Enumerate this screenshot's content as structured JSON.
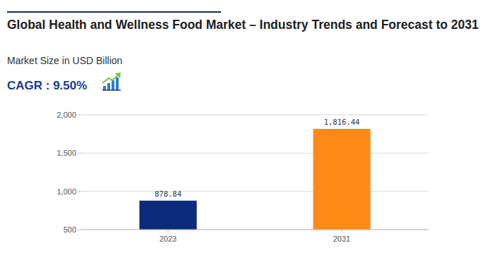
{
  "chart_data": {
    "type": "bar",
    "title": "Global Health and Wellness Food Market – Industry Trends and Forecast to 2031",
    "subtitle": "Market Size in USD Billion",
    "annotations": [
      "CAGR : 9.50%"
    ],
    "categories": [
      "2023",
      "2031"
    ],
    "values": [
      878.84,
      1816.44
    ],
    "value_labels": [
      "878.84",
      "1,816.44"
    ],
    "colors": [
      "#0b2a7c",
      "#ff8a17"
    ],
    "data_labels": true,
    "ylim": [
      500,
      2000
    ],
    "yticks": [
      500,
      {
        "value": 1000,
        "label": "1,000"
      },
      {
        "value": 1500,
        "label": "1,500"
      },
      {
        "value": 2000,
        "label": "2,000"
      }
    ],
    "grid": true
  }
}
